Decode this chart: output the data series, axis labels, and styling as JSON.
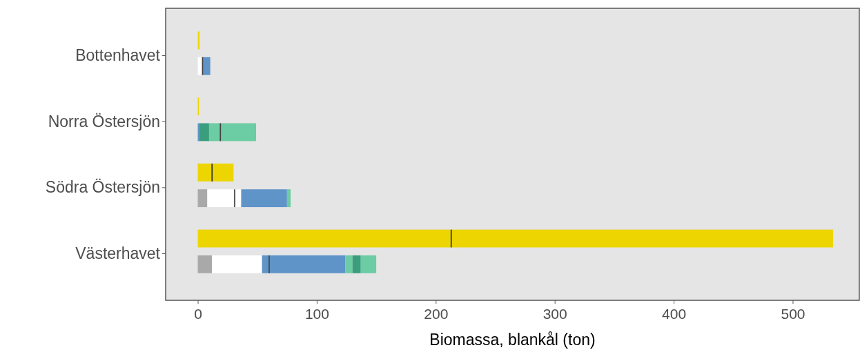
{
  "chart_data": {
    "type": "bar",
    "orientation": "horizontal",
    "xlabel": "Biomassa, blankål (ton)",
    "categories": [
      "Bottenhavet",
      "Norra Östersjön",
      "Södra Östersjön",
      "Västerhavet"
    ],
    "xlim": [
      -27,
      556
    ],
    "xticks": [
      0,
      100,
      200,
      300,
      400,
      500
    ],
    "grid": false,
    "series": [
      {
        "color": "#ecd500",
        "values": [
          1.5,
          1,
          30,
          534
        ],
        "base": [
          0,
          0,
          0,
          0
        ]
      },
      {
        "color": "#a9a9a9",
        "values": [
          null,
          null,
          8,
          12
        ],
        "base": [
          null,
          null,
          0,
          0
        ]
      },
      {
        "color": "#ffffff",
        "values": [
          4,
          null,
          28.5,
          42
        ],
        "base": [
          0,
          null,
          8,
          12
        ]
      },
      {
        "color": "#5f94c9",
        "values": [
          6.5,
          1,
          38.5,
          70
        ],
        "base": [
          4,
          0,
          36.5,
          54
        ]
      },
      {
        "color": "#6ccca3",
        "values": [
          null,
          null,
          3,
          6
        ],
        "base": [
          null,
          null,
          75,
          124
        ]
      },
      {
        "color": "#3a9e7e",
        "values": [
          null,
          8.5,
          null,
          7
        ],
        "base": [
          null,
          1,
          null,
          130
        ]
      },
      {
        "color": "#6ccca3",
        "values": [
          null,
          39.5,
          null,
          13
        ],
        "base": [
          null,
          9.5,
          null,
          137
        ]
      },
      {
        "color": "#333333",
        "values": [
          null,
          null,
          1,
          1
        ],
        "base": [
          null,
          null,
          11.5,
          212.5
        ]
      },
      {
        "color": "#444444",
        "values": [
          1,
          1,
          1,
          1
        ],
        "base": [
          3.5,
          18.5,
          30.5,
          59.5
        ]
      }
    ]
  }
}
